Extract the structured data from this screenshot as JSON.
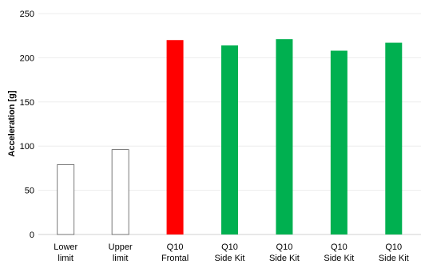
{
  "chart_data": {
    "type": "bar",
    "ylabel": "Acceleration [g]",
    "ylim": [
      0,
      250
    ],
    "yticks": [
      "0",
      "50",
      "100",
      "150",
      "200",
      "250"
    ],
    "grid": true,
    "categories": [
      [
        "Lower",
        "limit"
      ],
      [
        "Upper",
        "limit"
      ],
      [
        "Q10",
        "Frontal"
      ],
      [
        "Q10",
        "Side Kit"
      ],
      [
        "Q10",
        "Side Kit"
      ],
      [
        "Q10",
        "Side Kit"
      ],
      [
        "Q10",
        "Side Kit"
      ]
    ],
    "values": [
      79,
      96,
      220,
      214,
      221,
      208,
      217
    ],
    "colors": {
      "limit_fill": "#ffffff",
      "limit_stroke": "#595959",
      "frontal": "#ff0000",
      "side_kit": "#00b050"
    },
    "bar_styles": [
      "limit",
      "limit",
      "frontal",
      "side_kit",
      "side_kit",
      "side_kit",
      "side_kit"
    ]
  }
}
